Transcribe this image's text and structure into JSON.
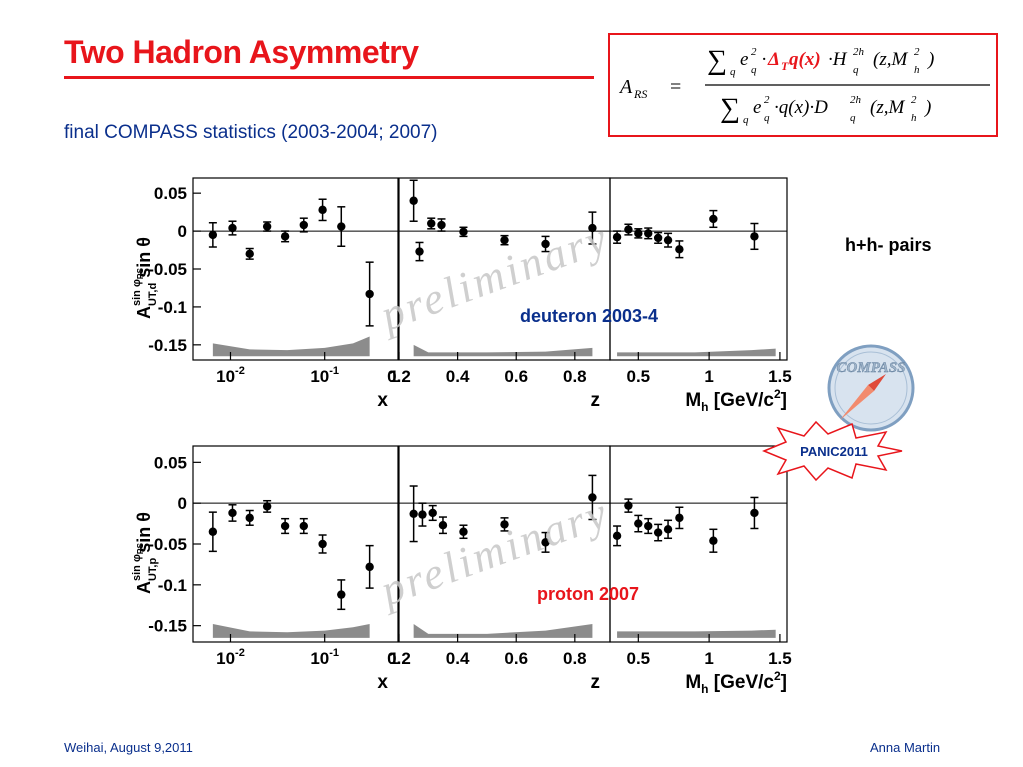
{
  "slide": {
    "title": "Two Hadron Asymmetry",
    "subtitle": "final COMPASS statistics (2003-2004; 2007)",
    "pairs_label": "h+h- pairs",
    "footer_left": "Weihai, August 9,2011",
    "footer_right": "Anna Martin",
    "logo_text": "COMPASS",
    "badge_text": "PANIC2011",
    "watermark": "preliminary"
  },
  "formula": {
    "lhs": "A",
    "lhs_sub": "RS",
    "eq": "=",
    "num_a": "∑",
    "num_b": "q",
    "num_c": "e",
    "num_d": "2",
    "num_e": "q",
    "num_f": "·",
    "num_g": "Δ",
    "num_h": "T",
    "num_i": "q(x)",
    "num_j": "·H",
    "num_k": "2h",
    "num_l": "q",
    "num_m": "(z,M",
    "num_n": "2",
    "num_o": "h",
    "num_p": ")",
    "den_a": "∑",
    "den_b": "q",
    "den_c": "e",
    "den_d": "2",
    "den_e": "q",
    "den_f": "·q(x)·D",
    "den_g": "2h",
    "den_h": "q",
    "den_i": "(z,M",
    "den_j": "2",
    "den_k": "h",
    "den_l": ")",
    "accent_color": "#e8151b"
  },
  "chart_data": [
    {
      "type": "scatter",
      "title": "deuteron 2003-4",
      "title_color": "#0a2f8c",
      "ylabel": "A sin φRS UT,d sin θ",
      "ylabel_parts": {
        "base": "A",
        "sup": "sin φ",
        "supsub": "RS",
        "sub": "UT,d",
        "tail": " sin θ"
      },
      "ylim": [
        -0.17,
        0.07
      ],
      "yticks": [
        {
          "v": 0.05,
          "t": "0.05"
        },
        {
          "v": 0,
          "t": "0"
        },
        {
          "v": -0.05,
          "t": "-0.05"
        },
        {
          "v": -0.1,
          "t": "-0.1"
        },
        {
          "v": -0.15,
          "t": "-0.15"
        }
      ],
      "panels": [
        {
          "xlabel": "x",
          "xscale": "log",
          "xlim": [
            0.004,
            0.6
          ],
          "xticks": [
            {
              "v": 0.01,
              "t": "10",
              "sup": "-2"
            },
            {
              "v": 0.1,
              "t": "10",
              "sup": "-1"
            }
          ],
          "corner_label": "1",
          "points": [
            {
              "x": 0.0065,
              "y": -0.005,
              "err": 0.016
            },
            {
              "x": 0.0105,
              "y": 0.004,
              "err": 0.009
            },
            {
              "x": 0.016,
              "y": -0.03,
              "err": 0.007
            },
            {
              "x": 0.0245,
              "y": 0.006,
              "err": 0.006
            },
            {
              "x": 0.038,
              "y": -0.007,
              "err": 0.007
            },
            {
              "x": 0.06,
              "y": 0.008,
              "err": 0.009
            },
            {
              "x": 0.095,
              "y": 0.028,
              "err": 0.014
            },
            {
              "x": 0.15,
              "y": 0.006,
              "err": 0.026
            },
            {
              "x": 0.3,
              "y": -0.083,
              "err": 0.042
            }
          ],
          "band": [
            [
              0.0065,
              -0.148
            ],
            [
              0.016,
              -0.156
            ],
            [
              0.04,
              -0.157
            ],
            [
              0.1,
              -0.154
            ],
            [
              0.2,
              -0.148
            ],
            [
              0.3,
              -0.139
            ]
          ]
        },
        {
          "xlabel": "z",
          "xscale": "linear",
          "xlim": [
            0.2,
            0.92
          ],
          "xticks": [
            {
              "v": 0.2,
              "t": "0.2"
            },
            {
              "v": 0.4,
              "t": "0.4"
            },
            {
              "v": 0.6,
              "t": "0.6"
            },
            {
              "v": 0.8,
              "t": "0.8"
            }
          ],
          "points": [
            {
              "x": 0.25,
              "y": 0.04,
              "err": 0.027
            },
            {
              "x": 0.27,
              "y": -0.027,
              "err": 0.012
            },
            {
              "x": 0.31,
              "y": 0.01,
              "err": 0.007
            },
            {
              "x": 0.345,
              "y": 0.008,
              "err": 0.008
            },
            {
              "x": 0.42,
              "y": -0.001,
              "err": 0.006
            },
            {
              "x": 0.56,
              "y": -0.012,
              "err": 0.006
            },
            {
              "x": 0.7,
              "y": -0.017,
              "err": 0.01
            },
            {
              "x": 0.86,
              "y": 0.004,
              "err": 0.021
            }
          ],
          "band": [
            [
              0.25,
              -0.15
            ],
            [
              0.3,
              -0.16
            ],
            [
              0.5,
              -0.16
            ],
            [
              0.7,
              -0.159
            ],
            [
              0.86,
              -0.154
            ]
          ]
        },
        {
          "xlabel": "Mh [GeV/c2]",
          "xlabel_parts": {
            "base": "M",
            "sub": "h",
            "tail": " [GeV/c",
            "sup": "2",
            "end": "]"
          },
          "xscale": "linear",
          "xlim": [
            0.3,
            1.55
          ],
          "xticks": [
            {
              "v": 0.5,
              "t": "0.5"
            },
            {
              "v": 1,
              "t": "1"
            },
            {
              "v": 1.5,
              "t": "1.5"
            }
          ],
          "points": [
            {
              "x": 0.35,
              "y": -0.008,
              "err": 0.008
            },
            {
              "x": 0.43,
              "y": 0.002,
              "err": 0.007
            },
            {
              "x": 0.5,
              "y": -0.003,
              "err": 0.006
            },
            {
              "x": 0.57,
              "y": -0.003,
              "err": 0.007
            },
            {
              "x": 0.64,
              "y": -0.009,
              "err": 0.007
            },
            {
              "x": 0.71,
              "y": -0.012,
              "err": 0.009
            },
            {
              "x": 0.79,
              "y": -0.024,
              "err": 0.011
            },
            {
              "x": 1.03,
              "y": 0.016,
              "err": 0.011
            },
            {
              "x": 1.32,
              "y": -0.007,
              "err": 0.017
            }
          ],
          "band": [
            [
              0.35,
              -0.16
            ],
            [
              0.6,
              -0.16
            ],
            [
              0.9,
              -0.16
            ],
            [
              1.3,
              -0.157
            ],
            [
              1.47,
              -0.155
            ]
          ]
        }
      ]
    },
    {
      "type": "scatter",
      "title": "proton 2007",
      "title_color": "#e8151b",
      "ylabel": "A sin φRS UT,p sin θ",
      "ylabel_parts": {
        "base": "A",
        "sup": "sin φ",
        "supsub": "RS",
        "sub": "UT,p",
        "tail": " sin θ"
      },
      "ylim": [
        -0.17,
        0.07
      ],
      "yticks": [
        {
          "v": 0.05,
          "t": "0.05"
        },
        {
          "v": 0,
          "t": "0"
        },
        {
          "v": -0.05,
          "t": "-0.05"
        },
        {
          "v": -0.1,
          "t": "-0.1"
        },
        {
          "v": -0.15,
          "t": "-0.15"
        }
      ],
      "panels": [
        {
          "xlabel": "x",
          "xscale": "log",
          "xlim": [
            0.004,
            0.6
          ],
          "xticks": [
            {
              "v": 0.01,
              "t": "10",
              "sup": "-2"
            },
            {
              "v": 0.1,
              "t": "10",
              "sup": "-1"
            }
          ],
          "corner_label": "1",
          "points": [
            {
              "x": 0.0065,
              "y": -0.035,
              "err": 0.024
            },
            {
              "x": 0.0105,
              "y": -0.012,
              "err": 0.01
            },
            {
              "x": 0.016,
              "y": -0.018,
              "err": 0.009
            },
            {
              "x": 0.0245,
              "y": -0.004,
              "err": 0.007
            },
            {
              "x": 0.038,
              "y": -0.028,
              "err": 0.009
            },
            {
              "x": 0.06,
              "y": -0.028,
              "err": 0.009
            },
            {
              "x": 0.095,
              "y": -0.05,
              "err": 0.011
            },
            {
              "x": 0.15,
              "y": -0.112,
              "err": 0.018
            },
            {
              "x": 0.3,
              "y": -0.078,
              "err": 0.026
            }
          ],
          "band": [
            [
              0.0065,
              -0.148
            ],
            [
              0.016,
              -0.157
            ],
            [
              0.04,
              -0.158
            ],
            [
              0.1,
              -0.156
            ],
            [
              0.2,
              -0.152
            ],
            [
              0.3,
              -0.148
            ]
          ]
        },
        {
          "xlabel": "z",
          "xscale": "linear",
          "xlim": [
            0.2,
            0.92
          ],
          "xticks": [
            {
              "v": 0.2,
              "t": "0.2"
            },
            {
              "v": 0.4,
              "t": "0.4"
            },
            {
              "v": 0.6,
              "t": "0.6"
            },
            {
              "v": 0.8,
              "t": "0.8"
            }
          ],
          "points": [
            {
              "x": 0.25,
              "y": -0.013,
              "err": 0.034
            },
            {
              "x": 0.28,
              "y": -0.014,
              "err": 0.014
            },
            {
              "x": 0.315,
              "y": -0.012,
              "err": 0.009
            },
            {
              "x": 0.35,
              "y": -0.027,
              "err": 0.01
            },
            {
              "x": 0.42,
              "y": -0.035,
              "err": 0.008
            },
            {
              "x": 0.56,
              "y": -0.026,
              "err": 0.008
            },
            {
              "x": 0.7,
              "y": -0.048,
              "err": 0.012
            },
            {
              "x": 0.86,
              "y": 0.007,
              "err": 0.027
            }
          ],
          "band": [
            [
              0.25,
              -0.148
            ],
            [
              0.3,
              -0.16
            ],
            [
              0.5,
              -0.16
            ],
            [
              0.7,
              -0.156
            ],
            [
              0.86,
              -0.148
            ]
          ]
        },
        {
          "xlabel": "Mh [GeV/c2]",
          "xlabel_parts": {
            "base": "M",
            "sub": "h",
            "tail": " [GeV/c",
            "sup": "2",
            "end": "]"
          },
          "xscale": "linear",
          "xlim": [
            0.3,
            1.55
          ],
          "xticks": [
            {
              "v": 0.5,
              "t": "0.5"
            },
            {
              "v": 1,
              "t": "1"
            },
            {
              "v": 1.5,
              "t": "1.5"
            }
          ],
          "points": [
            {
              "x": 0.35,
              "y": -0.04,
              "err": 0.012
            },
            {
              "x": 0.43,
              "y": -0.003,
              "err": 0.008
            },
            {
              "x": 0.5,
              "y": -0.025,
              "err": 0.01
            },
            {
              "x": 0.57,
              "y": -0.028,
              "err": 0.009
            },
            {
              "x": 0.64,
              "y": -0.036,
              "err": 0.01
            },
            {
              "x": 0.71,
              "y": -0.032,
              "err": 0.011
            },
            {
              "x": 0.79,
              "y": -0.018,
              "err": 0.013
            },
            {
              "x": 1.03,
              "y": -0.046,
              "err": 0.014
            },
            {
              "x": 1.32,
              "y": -0.012,
              "err": 0.019
            }
          ],
          "band": [
            [
              0.35,
              -0.157
            ],
            [
              0.6,
              -0.157
            ],
            [
              0.9,
              -0.157
            ],
            [
              1.3,
              -0.156
            ],
            [
              1.47,
              -0.155
            ]
          ]
        }
      ]
    }
  ]
}
